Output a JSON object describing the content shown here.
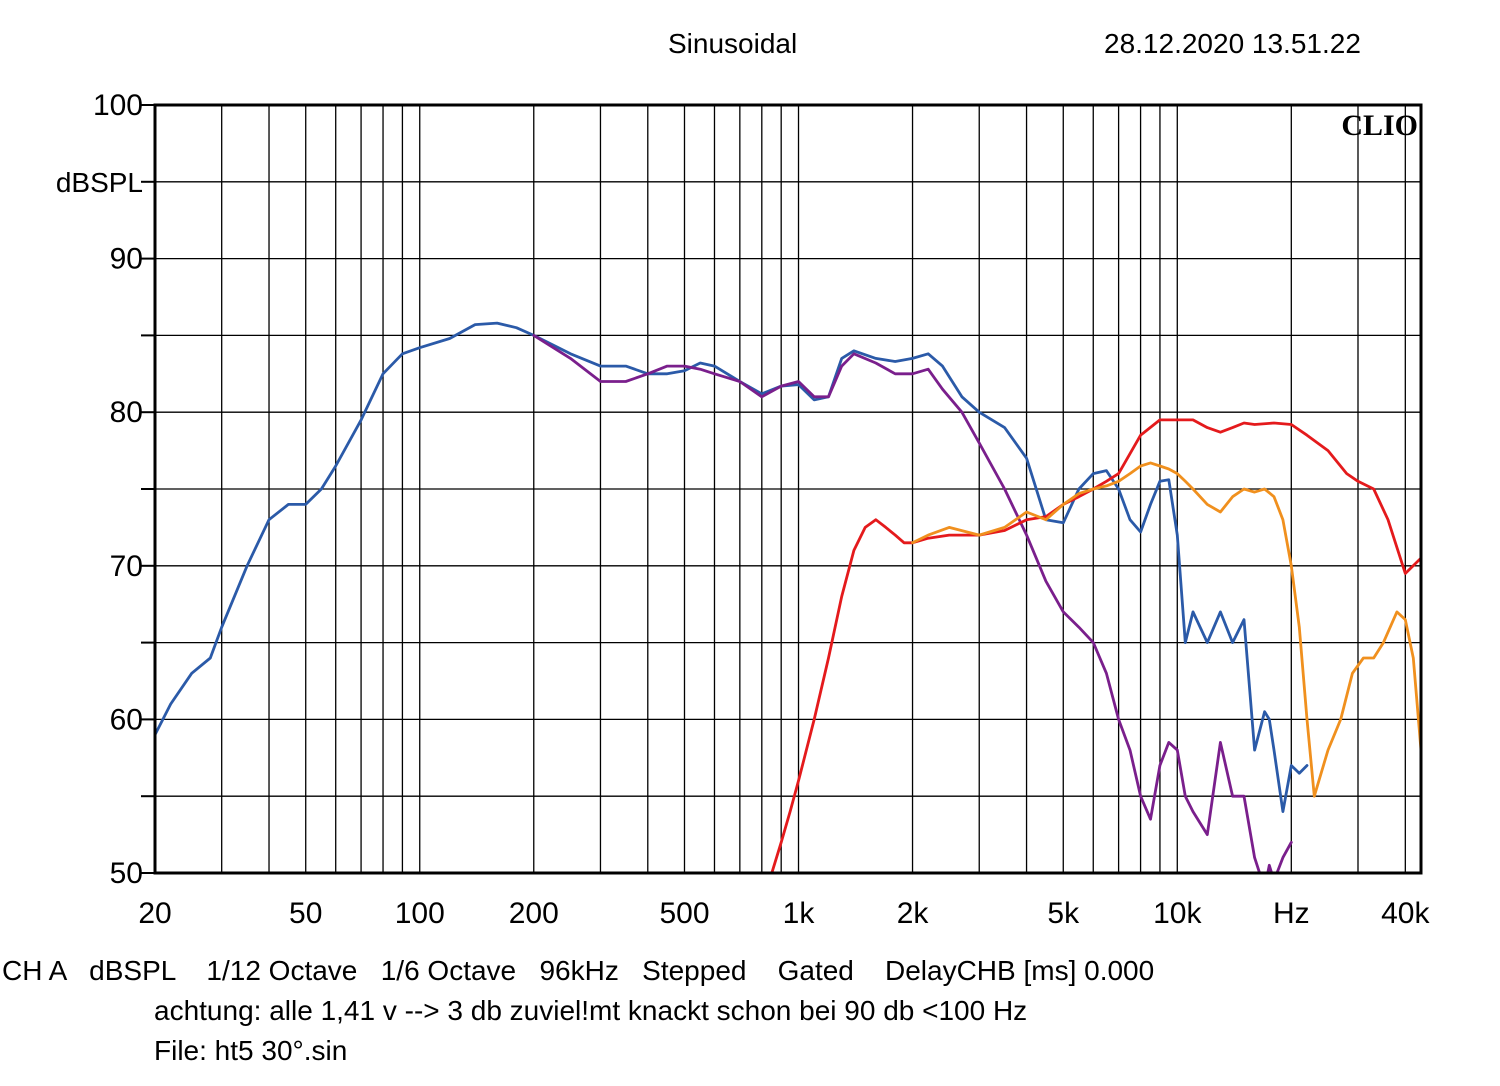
{
  "header": {
    "title": "Sinusoidal",
    "datetime": "28.12.2020 13.51.22"
  },
  "brand": "CLIO",
  "footer": {
    "line1": "CH A   dBSPL    1/12 Octave   1/6 Octave   96kHz   Stepped    Gated    DelayCHB [ms] 0.000",
    "line2": "achtung: alle 1,41 v --> 3 db zuviel!mt knackt schon bei 90 db <100 Hz",
    "line3": "File: ht5 30°.sin"
  },
  "chart_data": {
    "type": "line",
    "xscale": "log",
    "xlim": [
      20,
      44000
    ],
    "ylim": [
      50,
      100
    ],
    "ylabel": "dBSPL",
    "yticks": [
      {
        "value": 100,
        "label": "100"
      },
      {
        "value": 90,
        "label": "90"
      },
      {
        "value": 80,
        "label": "80"
      },
      {
        "value": 70,
        "label": "70"
      },
      {
        "value": 60,
        "label": "60"
      },
      {
        "value": 50,
        "label": "50"
      }
    ],
    "xticks": [
      {
        "value": 20,
        "label": "20"
      },
      {
        "value": 50,
        "label": "50"
      },
      {
        "value": 100,
        "label": "100"
      },
      {
        "value": 200,
        "label": "200"
      },
      {
        "value": 500,
        "label": "500"
      },
      {
        "value": 1000,
        "label": "1k"
      },
      {
        "value": 2000,
        "label": "2k"
      },
      {
        "value": 5000,
        "label": "5k"
      },
      {
        "value": 10000,
        "label": "10k"
      },
      {
        "value": 20000,
        "label": "Hz"
      },
      {
        "value": 40000,
        "label": "40k"
      }
    ],
    "grid": true,
    "series": [
      {
        "color": "#2b5aa8",
        "x": [
          20,
          22,
          25,
          28,
          30,
          35,
          40,
          45,
          50,
          55,
          60,
          70,
          80,
          90,
          100,
          120,
          140,
          160,
          180,
          200,
          250,
          300,
          350,
          400,
          450,
          500,
          550,
          600,
          700,
          800,
          900,
          1000,
          1100,
          1200,
          1300,
          1400,
          1600,
          1800,
          2000,
          2200,
          2400,
          2700,
          3000,
          3500,
          4000,
          4500,
          5000,
          5500,
          6000,
          6500,
          7000,
          7500,
          8000,
          8500,
          9000,
          9500,
          10000,
          10500,
          11000,
          12000,
          13000,
          14000,
          15000,
          16000,
          17000,
          17500,
          18000,
          19000,
          20000,
          21000,
          22000
        ],
        "y": [
          59,
          61,
          63,
          64,
          66,
          70,
          73,
          74,
          74,
          75,
          76.5,
          79.5,
          82.5,
          83.8,
          84.2,
          84.8,
          85.7,
          85.8,
          85.5,
          85,
          83.8,
          83,
          83,
          82.5,
          82.5,
          82.7,
          83.2,
          83,
          82,
          81.2,
          81.7,
          81.8,
          80.8,
          81,
          83.5,
          84,
          83.5,
          83.3,
          83.5,
          83.8,
          83,
          81,
          80,
          79,
          77,
          73,
          72.8,
          75,
          76,
          76.2,
          75,
          73,
          72.2,
          74,
          75.5,
          75.6,
          72,
          65,
          67,
          65,
          67,
          65,
          66.5,
          58,
          60.5,
          60,
          58,
          54,
          57,
          56.5,
          57
        ]
      },
      {
        "color": "#7a1f8c",
        "x": [
          200,
          250,
          300,
          350,
          400,
          450,
          500,
          550,
          600,
          700,
          800,
          900,
          1000,
          1100,
          1200,
          1300,
          1400,
          1600,
          1800,
          2000,
          2200,
          2400,
          2700,
          3000,
          3500,
          4000,
          4500,
          5000,
          5500,
          6000,
          6500,
          7000,
          7500,
          8000,
          8500,
          9000,
          9500,
          10000,
          10500,
          11000,
          12000,
          13000,
          14000,
          15000,
          16000,
          17000,
          17500,
          18000,
          19000,
          20000
        ],
        "y": [
          85,
          83.5,
          82,
          82,
          82.5,
          83,
          83,
          82.8,
          82.5,
          82,
          81,
          81.7,
          82,
          81,
          81,
          83,
          83.8,
          83.2,
          82.5,
          82.5,
          82.8,
          81.5,
          80,
          78,
          75,
          72,
          69,
          67,
          66,
          65,
          63,
          60,
          58,
          55,
          53.5,
          57,
          58.5,
          58,
          55,
          54,
          52.5,
          58.5,
          55,
          55,
          51,
          49,
          50.5,
          49.5,
          51,
          52
        ]
      },
      {
        "color": "#e41a1c",
        "x": [
          850,
          900,
          950,
          1000,
          1100,
          1200,
          1300,
          1400,
          1500,
          1600,
          1700,
          1800,
          1900,
          2000,
          2200,
          2500,
          3000,
          3500,
          4000,
          4500,
          5000,
          5500,
          6000,
          6500,
          7000,
          8000,
          9000,
          10000,
          11000,
          12000,
          13000,
          14000,
          15000,
          16000,
          18000,
          20000,
          22000,
          25000,
          28000,
          30000,
          33000,
          36000,
          40000,
          44000
        ],
        "y": [
          50,
          52,
          54,
          56,
          60,
          64,
          68,
          71,
          72.5,
          73,
          72.5,
          72,
          71.5,
          71.5,
          71.8,
          72,
          72,
          72.3,
          73,
          73.2,
          74,
          74.5,
          75,
          75.5,
          76,
          78.5,
          79.5,
          79.5,
          79.5,
          79,
          78.7,
          79,
          79.3,
          79.2,
          79.3,
          79.2,
          78.5,
          77.5,
          76,
          75.5,
          75,
          73,
          69.5,
          70.5
        ]
      },
      {
        "color": "#f0901e",
        "x": [
          2000,
          2200,
          2500,
          3000,
          3500,
          4000,
          4500,
          5000,
          5500,
          6000,
          6500,
          7000,
          7500,
          8000,
          8500,
          9000,
          9500,
          10000,
          10500,
          11000,
          12000,
          13000,
          14000,
          15000,
          16000,
          17000,
          18000,
          19000,
          20000,
          21000,
          22000,
          23000,
          25000,
          27000,
          29000,
          31000,
          33000,
          35000,
          38000,
          40000,
          42000,
          44000
        ],
        "y": [
          71.5,
          72,
          72.5,
          72,
          72.5,
          73.5,
          73,
          74,
          74.7,
          75,
          75.2,
          75.5,
          76,
          76.5,
          76.7,
          76.5,
          76.3,
          76,
          75.5,
          75,
          74,
          73.5,
          74.5,
          75,
          74.8,
          75,
          74.5,
          73,
          70,
          66,
          60,
          55,
          58,
          60,
          63,
          64,
          64,
          65,
          67,
          66.5,
          64,
          58
        ]
      }
    ]
  }
}
